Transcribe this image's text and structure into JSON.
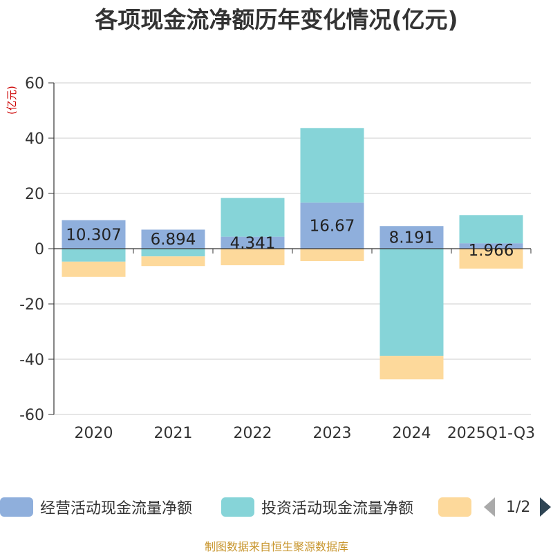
{
  "chart_data": {
    "type": "bar",
    "stacked": true,
    "title": "各项现金流净额历年变化情况(亿元)",
    "ylabel": "(亿元)",
    "xlabel": "",
    "ylim": [
      -60,
      60
    ],
    "yticks": [
      -60,
      -40,
      -20,
      0,
      20,
      40,
      60
    ],
    "categories": [
      "2020",
      "2021",
      "2022",
      "2023",
      "2024",
      "2025Q1-Q3"
    ],
    "series": [
      {
        "name": "经营活动现金流量净额",
        "color": "#8fafdc",
        "values": [
          10.307,
          6.894,
          4.341,
          16.67,
          8.191,
          1.966
        ],
        "labels": [
          "10.307",
          "6.894",
          "4.341",
          "16.67",
          "8.191",
          "1.966"
        ]
      },
      {
        "name": "投资活动现金流量净额",
        "color": "#86d4d8",
        "values": [
          -4.7,
          -2.8,
          14.0,
          27.0,
          -38.8,
          10.2
        ]
      },
      {
        "name": "",
        "color": "#fdd99b",
        "values": [
          -5.5,
          -3.5,
          -6.0,
          -4.5,
          -8.5,
          -7.2
        ]
      }
    ],
    "legend_position": "bottom",
    "grid": true
  },
  "pager": {
    "text": "1/2"
  },
  "source": "制图数据来自恒生聚源数据库"
}
